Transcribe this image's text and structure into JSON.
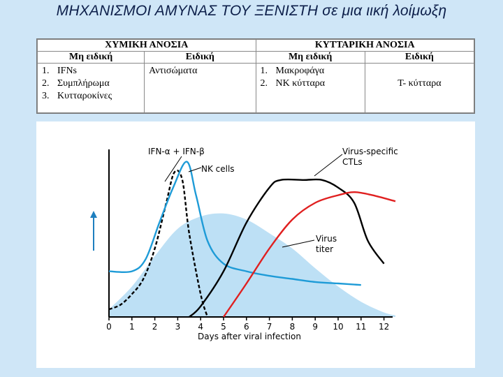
{
  "title": "ΜΗΧΑΝΙΣΜΟΙ ΑΜΥΝΑΣ ΤΟΥ ΞΕΝΙΣΤΗ σε μια ιική λοίμωξη",
  "table": {
    "group1": "ΧΥΜΙΚΗ ΑΝΟΣΙΑ",
    "group2": "ΚΥΤΤΑΡΙΚΗ ΑΝΟΣΙΑ",
    "sub1": "Μη ειδική",
    "sub2": "Ειδική",
    "sub3": "Μη ειδική",
    "sub4": "Ειδική",
    "humoral_nonspecific": [
      {
        "n": "1.",
        "t": "IFNs"
      },
      {
        "n": "2.",
        "t": "Συμπλήρωμα"
      },
      {
        "n": "3.",
        "t": "Κυτταροκίνες"
      }
    ],
    "humoral_specific": "Αντισώματα",
    "cellular_nonspecific": [
      {
        "n": "1.",
        "t": "Μακροφάγα"
      },
      {
        "n": "2.",
        "t": "NK κύτταρα"
      }
    ],
    "cellular_specific": "T- κύτταρα"
  },
  "chart_data": {
    "type": "line",
    "xlabel": "Days after viral infection",
    "x_ticks": [
      "0",
      "1",
      "2",
      "3",
      "4",
      "5",
      "6",
      "7",
      "8",
      "9",
      "10",
      "11",
      "12"
    ],
    "xlim": [
      0,
      12.5
    ],
    "series": [
      {
        "name": "IFN-α + IFN-β",
        "style": "dashed",
        "color": "#000000",
        "points": [
          [
            0,
            0.05
          ],
          [
            0.5,
            0.08
          ],
          [
            1,
            0.15
          ],
          [
            1.5,
            0.25
          ],
          [
            2,
            0.45
          ],
          [
            2.5,
            0.75
          ],
          [
            2.85,
            0.95
          ],
          [
            3.2,
            0.9
          ],
          [
            3.5,
            0.55
          ],
          [
            4,
            0.15
          ],
          [
            4.3,
            0.0
          ]
        ]
      },
      {
        "name": "NK cells",
        "style": "solid",
        "color": "#1e9bd7",
        "points": [
          [
            0,
            0.3
          ],
          [
            1,
            0.3
          ],
          [
            1.6,
            0.38
          ],
          [
            2.2,
            0.62
          ],
          [
            2.8,
            0.85
          ],
          [
            3.4,
            1.02
          ],
          [
            3.8,
            0.8
          ],
          [
            4.3,
            0.5
          ],
          [
            5,
            0.35
          ],
          [
            6,
            0.3
          ],
          [
            7,
            0.27
          ],
          [
            8,
            0.25
          ],
          [
            9,
            0.23
          ],
          [
            10,
            0.22
          ],
          [
            11,
            0.21
          ]
        ]
      },
      {
        "name": "Virus-specific CTLs",
        "style": "solid",
        "color": "#000000",
        "points": [
          [
            3.5,
            0.0
          ],
          [
            4,
            0.07
          ],
          [
            5,
            0.3
          ],
          [
            6,
            0.62
          ],
          [
            7,
            0.85
          ],
          [
            7.5,
            0.9
          ],
          [
            8.5,
            0.9
          ],
          [
            9.3,
            0.9
          ],
          [
            10,
            0.85
          ],
          [
            10.7,
            0.75
          ],
          [
            11.3,
            0.5
          ],
          [
            12,
            0.35
          ]
        ]
      },
      {
        "name": "",
        "style": "solid",
        "color": "#e02020",
        "points": [
          [
            5,
            0.0
          ],
          [
            6,
            0.22
          ],
          [
            7,
            0.45
          ],
          [
            8,
            0.64
          ],
          [
            9,
            0.75
          ],
          [
            10,
            0.8
          ],
          [
            10.7,
            0.82
          ],
          [
            11.5,
            0.8
          ],
          [
            12.5,
            0.76
          ]
        ]
      },
      {
        "name": "Virus titer",
        "style": "filled",
        "color": "#bde0f5",
        "points": [
          [
            0,
            0.05
          ],
          [
            1,
            0.2
          ],
          [
            2,
            0.4
          ],
          [
            3,
            0.58
          ],
          [
            4,
            0.66
          ],
          [
            5,
            0.68
          ],
          [
            6,
            0.64
          ],
          [
            7,
            0.55
          ],
          [
            8,
            0.45
          ],
          [
            9,
            0.32
          ],
          [
            10,
            0.2
          ],
          [
            11,
            0.1
          ],
          [
            12,
            0.03
          ],
          [
            12.5,
            0.01
          ]
        ]
      }
    ],
    "labels": {
      "ifn": "IFN-α + IFN-β",
      "nk": "NK cells",
      "ctl1": "Virus-specific",
      "ctl2": "CTLs",
      "titer1": "Virus",
      "titer2": "titer"
    }
  }
}
